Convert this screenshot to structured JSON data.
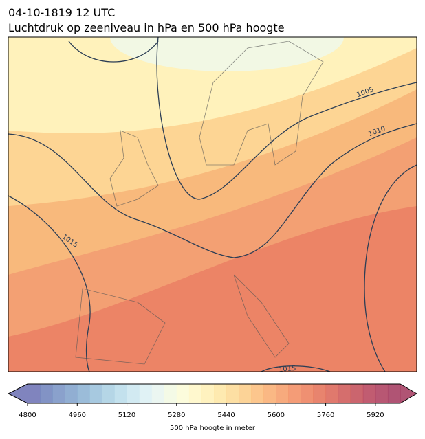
{
  "title": {
    "line1": "04-10-1819 12 UTC",
    "line2": "Luchtdruk op zeeniveau in hPa en 500 hPa hoogte"
  },
  "map": {
    "contour_labels": [
      "1005",
      "1010",
      "1015",
      "1015"
    ]
  },
  "colorbar": {
    "label": "500 hPa hoogte in meter",
    "lim": [
      4800,
      6000
    ],
    "ticks": [
      4800,
      4960,
      5120,
      5280,
      5440,
      5600,
      5760,
      5920
    ],
    "colors": [
      "#6a6fb3",
      "#6c80bb",
      "#7590c3",
      "#7ea0ca",
      "#8ab0d2",
      "#98c0da",
      "#a8cfe2",
      "#b9dcea",
      "#cae6f0",
      "#dbf0f3",
      "#e8f5ee",
      "#f2f9e2",
      "#fbfbd6",
      "#fff7c6",
      "#fff0b4",
      "#fee6a2",
      "#fdd993",
      "#fccb85",
      "#fbbc79",
      "#f9ab6e",
      "#f69b66",
      "#f28b5f",
      "#ec7c59",
      "#e46e55",
      "#da6153",
      "#ce5553",
      "#c24a55",
      "#b64058",
      "#ab3a5a",
      "#a2365c"
    ]
  }
}
